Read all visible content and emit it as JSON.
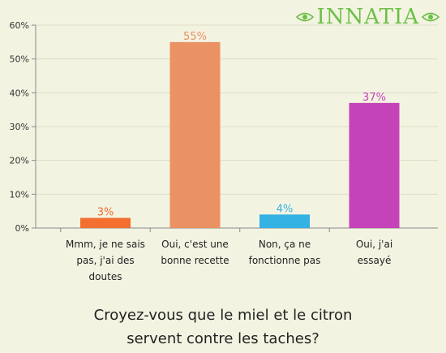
{
  "logo_text": "INNATIA",
  "chart_data": {
    "type": "bar",
    "categories": [
      [
        "Mmm, je ne sais",
        "pas, j'ai des",
        "doutes"
      ],
      [
        "Oui, c'est une",
        "bonne recette"
      ],
      [
        "Non, ça ne",
        "fonctionne pas"
      ],
      [
        "Oui, j'ai",
        "essayé"
      ]
    ],
    "values": [
      3,
      55,
      4,
      37
    ],
    "value_labels": [
      "3%",
      "55%",
      "4%",
      "37%"
    ],
    "colors": [
      "#f26f2f",
      "#ea9264",
      "#33b2e3",
      "#c543b8"
    ],
    "y_ticks": [
      0,
      10,
      20,
      30,
      40,
      50,
      60
    ],
    "y_tick_labels": [
      "0%",
      "10%",
      "20%",
      "30%",
      "40%",
      "50%",
      "60%"
    ],
    "ylim": [
      0,
      60
    ],
    "grid": true,
    "grid_color": "#dcdcc6"
  },
  "question": {
    "line1": "Croyez-vous que le miel et le citron",
    "line2": "servent contre les taches?"
  }
}
